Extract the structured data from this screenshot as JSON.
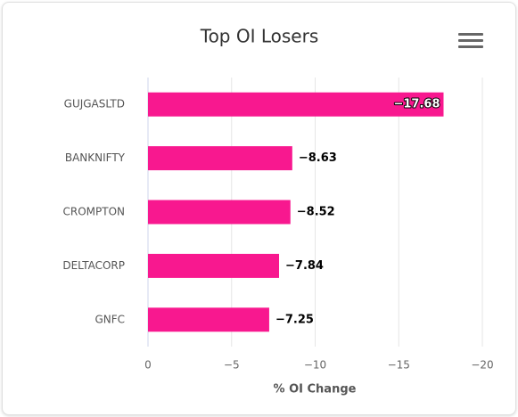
{
  "chart_data": {
    "type": "bar",
    "orientation": "horizontal",
    "title": "Top OI Losers",
    "categories": [
      "GUJGASLTD",
      "BANKNIFTY",
      "CROMPTON",
      "DELTACORP",
      "GNFC"
    ],
    "values": [
      -17.68,
      -8.63,
      -8.52,
      -7.84,
      -7.25
    ],
    "value_labels": [
      "−17.68",
      "−8.63",
      "−8.52",
      "−7.84",
      "−7.25"
    ],
    "color": "#f8188f",
    "xlabel": "% OI Change",
    "xlim": [
      0,
      -20
    ],
    "xticks": [
      0,
      {
        "value": -5,
        "label": "−5"
      },
      {
        "value": -10,
        "label": "−10"
      },
      {
        "value": -15,
        "label": "−15"
      },
      {
        "value": -20,
        "label": "−20"
      }
    ],
    "grid": true
  }
}
